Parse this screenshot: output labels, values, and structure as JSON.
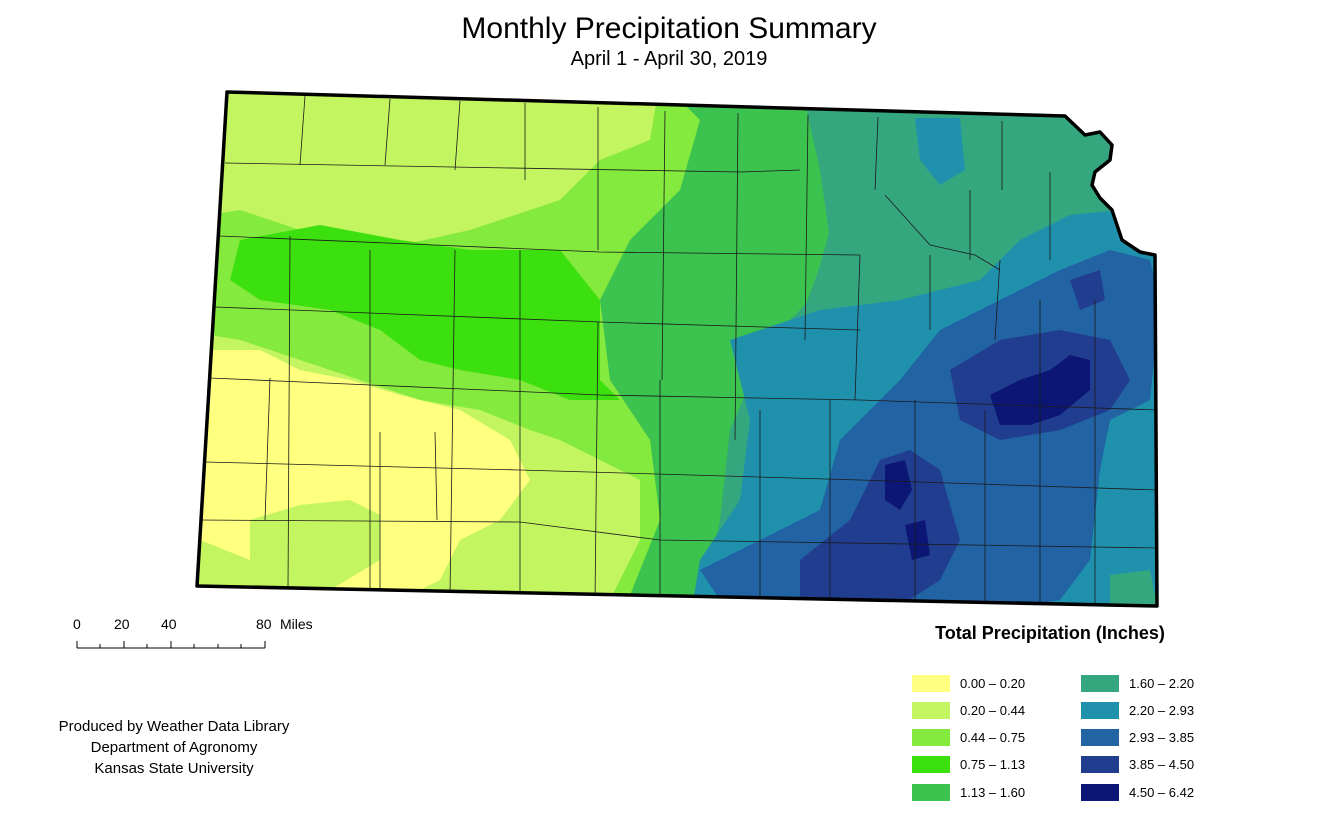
{
  "title": "Monthly Precipitation Summary",
  "subtitle": "April 1 - April 30, 2019",
  "scale_bar": {
    "ticks": [
      "0",
      "20",
      "40",
      "80"
    ],
    "unit": "Miles"
  },
  "credits": [
    "Produced by Weather Data Library",
    "Department of Agronomy",
    "Kansas State University"
  ],
  "legend": {
    "title": "Total Precipitation (Inches)",
    "items": [
      {
        "label": "0.00 – 0.20",
        "color": "#ffff80"
      },
      {
        "label": "0.20 – 0.44",
        "color": "#c3f560"
      },
      {
        "label": "0.44 – 0.75",
        "color": "#84ea3d"
      },
      {
        "label": "0.75 – 1.13",
        "color": "#3de00f"
      },
      {
        "label": "1.13 – 1.60",
        "color": "#3cc24e"
      },
      {
        "label": "1.60 – 2.20",
        "color": "#35a77f"
      },
      {
        "label": "2.20 – 2.93",
        "color": "#1f91ad"
      },
      {
        "label": "2.93 – 3.85",
        "color": "#2163a3"
      },
      {
        "label": "3.85 – 4.50",
        "color": "#213d8f"
      },
      {
        "label": "4.50 – 6.42",
        "color": "#0b1675"
      }
    ]
  },
  "map": {
    "region": "Kansas",
    "precipitation_pattern": "driest in southwest, wettest in southeast"
  }
}
